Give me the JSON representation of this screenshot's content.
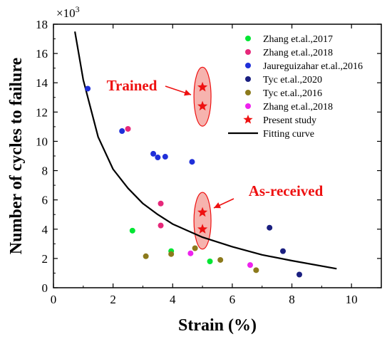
{
  "chart_data": {
    "type": "scatter",
    "xlabel": "Strain (%)",
    "ylabel": "Number of cycles to failure",
    "y_multiplier": "×10",
    "y_multiplier_exp": "3",
    "xlim": [
      0,
      11
    ],
    "ylim": [
      0,
      18
    ],
    "x_ticks": [
      "0",
      "2",
      "4",
      "6",
      "8",
      "10"
    ],
    "x_tick_values": [
      0,
      2,
      4,
      6,
      8,
      10
    ],
    "y_ticks": [
      "0",
      "2",
      "4",
      "6",
      "8",
      "10",
      "12",
      "14",
      "16",
      "18"
    ],
    "y_tick_values": [
      0,
      2,
      4,
      6,
      8,
      10,
      12,
      14,
      16,
      18
    ],
    "legend_position": "top-right",
    "series": [
      {
        "name": "Zhang et.al.,2017",
        "marker": "circle",
        "color": "#00e633",
        "points": [
          [
            2.65,
            3.9
          ],
          [
            3.95,
            2.5
          ],
          [
            5.25,
            1.8
          ]
        ]
      },
      {
        "name": "Zhang et.al.,2018",
        "marker": "circle",
        "color": "#e6287a",
        "points": [
          [
            2.5,
            10.85
          ],
          [
            3.6,
            5.75
          ],
          [
            3.6,
            4.25
          ]
        ]
      },
      {
        "name": "Jaureguizahar et.al.,2016",
        "marker": "circle",
        "color": "#1f2fd9",
        "points": [
          [
            1.15,
            13.6
          ],
          [
            2.3,
            10.7
          ],
          [
            3.35,
            9.15
          ],
          [
            3.5,
            8.9
          ],
          [
            3.75,
            8.95
          ],
          [
            4.65,
            8.6
          ]
        ]
      },
      {
        "name": "Tyc et.al.,2020",
        "marker": "circle",
        "color": "#1a1f80",
        "points": [
          [
            7.25,
            4.1
          ],
          [
            7.7,
            2.5
          ],
          [
            8.25,
            0.9
          ]
        ]
      },
      {
        "name": "Tyc et.al.,2016",
        "marker": "circle",
        "color": "#8c7a1c",
        "points": [
          [
            3.1,
            2.15
          ],
          [
            3.95,
            2.3
          ],
          [
            4.75,
            2.7
          ],
          [
            5.6,
            1.9
          ],
          [
            6.8,
            1.2
          ]
        ]
      },
      {
        "name": "Zhang et.al.,2018",
        "marker": "circle",
        "color": "#ee22ee",
        "points": [
          [
            4.6,
            2.35
          ],
          [
            6.6,
            1.55
          ]
        ]
      },
      {
        "name": "Present study",
        "marker": "star",
        "color": "#ee1111",
        "points": [
          [
            5.0,
            13.7
          ],
          [
            5.0,
            12.4
          ],
          [
            5.0,
            5.15
          ],
          [
            5.0,
            4.0
          ]
        ]
      }
    ],
    "fitting_curve": {
      "name": "Fitting curve",
      "color": "#000000",
      "points": [
        [
          0.72,
          17.5
        ],
        [
          1,
          14.2
        ],
        [
          1.5,
          10.3
        ],
        [
          2,
          8.1
        ],
        [
          2.5,
          6.8
        ],
        [
          3,
          5.75
        ],
        [
          3.5,
          5.0
        ],
        [
          4,
          4.35
        ],
        [
          5,
          3.45
        ],
        [
          6,
          2.8
        ],
        [
          7,
          2.25
        ],
        [
          8,
          1.85
        ],
        [
          9.5,
          1.3
        ]
      ]
    },
    "annotations": [
      {
        "text": "Trained",
        "color": "#ee1111"
      },
      {
        "text": "As-received",
        "color": "#ee1111"
      }
    ]
  }
}
